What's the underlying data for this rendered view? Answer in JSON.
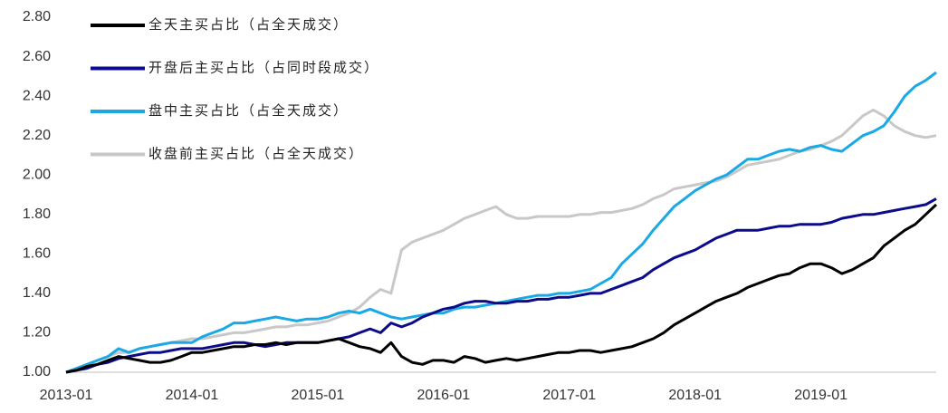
{
  "chart_data": {
    "type": "line",
    "x": [
      "2013-01",
      "2013-02",
      "2013-03",
      "2013-04",
      "2013-05",
      "2013-06",
      "2013-07",
      "2013-08",
      "2013-09",
      "2013-10",
      "2013-11",
      "2013-12",
      "2014-01",
      "2014-02",
      "2014-03",
      "2014-04",
      "2014-05",
      "2014-06",
      "2014-07",
      "2014-08",
      "2014-09",
      "2014-10",
      "2014-11",
      "2014-12",
      "2015-01",
      "2015-02",
      "2015-03",
      "2015-04",
      "2015-05",
      "2015-06",
      "2015-07",
      "2015-08",
      "2015-09",
      "2015-10",
      "2015-11",
      "2015-12",
      "2016-01",
      "2016-02",
      "2016-03",
      "2016-04",
      "2016-05",
      "2016-06",
      "2016-07",
      "2016-08",
      "2016-09",
      "2016-10",
      "2016-11",
      "2016-12",
      "2017-01",
      "2017-02",
      "2017-03",
      "2017-04",
      "2017-05",
      "2017-06",
      "2017-07",
      "2017-08",
      "2017-09",
      "2017-10",
      "2017-11",
      "2017-12",
      "2018-01",
      "2018-02",
      "2018-03",
      "2018-04",
      "2018-05",
      "2018-06",
      "2018-07",
      "2018-08",
      "2018-09",
      "2018-10",
      "2018-11",
      "2018-12",
      "2019-01",
      "2019-02",
      "2019-03",
      "2019-04",
      "2019-05",
      "2019-06",
      "2019-07",
      "2019-08",
      "2019-09",
      "2019-10",
      "2019-11",
      "2019-12"
    ],
    "series": [
      {
        "name": "全天主买占比（占全天成交）",
        "color": "#000000",
        "values": [
          1.0,
          1.01,
          1.03,
          1.04,
          1.06,
          1.08,
          1.07,
          1.06,
          1.05,
          1.05,
          1.06,
          1.08,
          1.1,
          1.1,
          1.11,
          1.12,
          1.13,
          1.13,
          1.14,
          1.14,
          1.15,
          1.14,
          1.15,
          1.15,
          1.15,
          1.16,
          1.17,
          1.15,
          1.13,
          1.12,
          1.1,
          1.15,
          1.08,
          1.05,
          1.04,
          1.06,
          1.06,
          1.05,
          1.08,
          1.07,
          1.05,
          1.06,
          1.07,
          1.06,
          1.07,
          1.08,
          1.09,
          1.1,
          1.1,
          1.11,
          1.11,
          1.1,
          1.11,
          1.12,
          1.13,
          1.15,
          1.17,
          1.2,
          1.24,
          1.27,
          1.3,
          1.33,
          1.36,
          1.38,
          1.4,
          1.43,
          1.45,
          1.47,
          1.49,
          1.5,
          1.53,
          1.55,
          1.55,
          1.53,
          1.5,
          1.52,
          1.55,
          1.58,
          1.64,
          1.68,
          1.72,
          1.75,
          1.8,
          1.85
        ]
      },
      {
        "name": "开盘后主买占比（占同时段成交）",
        "color": "#0c0c8a",
        "values": [
          1.0,
          1.01,
          1.02,
          1.04,
          1.05,
          1.07,
          1.08,
          1.09,
          1.1,
          1.1,
          1.11,
          1.12,
          1.12,
          1.12,
          1.13,
          1.14,
          1.15,
          1.15,
          1.14,
          1.13,
          1.14,
          1.15,
          1.15,
          1.15,
          1.15,
          1.16,
          1.17,
          1.18,
          1.2,
          1.22,
          1.2,
          1.25,
          1.23,
          1.25,
          1.28,
          1.3,
          1.32,
          1.33,
          1.35,
          1.36,
          1.36,
          1.35,
          1.35,
          1.36,
          1.36,
          1.37,
          1.37,
          1.38,
          1.38,
          1.39,
          1.4,
          1.4,
          1.42,
          1.44,
          1.46,
          1.48,
          1.52,
          1.55,
          1.58,
          1.6,
          1.62,
          1.65,
          1.68,
          1.7,
          1.72,
          1.72,
          1.72,
          1.73,
          1.74,
          1.74,
          1.75,
          1.75,
          1.75,
          1.76,
          1.78,
          1.79,
          1.8,
          1.8,
          1.81,
          1.82,
          1.83,
          1.84,
          1.85,
          1.88
        ]
      },
      {
        "name": "盘中主买占比（占全天成交）",
        "color": "#1ba9e6",
        "values": [
          1.0,
          1.02,
          1.04,
          1.06,
          1.08,
          1.12,
          1.1,
          1.12,
          1.13,
          1.14,
          1.15,
          1.15,
          1.15,
          1.18,
          1.2,
          1.22,
          1.25,
          1.25,
          1.26,
          1.27,
          1.28,
          1.27,
          1.26,
          1.27,
          1.27,
          1.28,
          1.3,
          1.31,
          1.3,
          1.32,
          1.3,
          1.28,
          1.27,
          1.28,
          1.29,
          1.3,
          1.3,
          1.32,
          1.33,
          1.33,
          1.34,
          1.35,
          1.36,
          1.37,
          1.38,
          1.39,
          1.39,
          1.4,
          1.4,
          1.41,
          1.42,
          1.45,
          1.48,
          1.55,
          1.6,
          1.65,
          1.72,
          1.78,
          1.84,
          1.88,
          1.92,
          1.95,
          1.98,
          2.0,
          2.04,
          2.08,
          2.08,
          2.1,
          2.12,
          2.13,
          2.12,
          2.14,
          2.15,
          2.13,
          2.12,
          2.16,
          2.2,
          2.22,
          2.25,
          2.32,
          2.4,
          2.45,
          2.48,
          2.52
        ]
      },
      {
        "name": "收盘前主买占比（占全天成交）",
        "color": "#c8c8c8",
        "values": [
          1.0,
          1.02,
          1.04,
          1.06,
          1.08,
          1.1,
          1.1,
          1.12,
          1.13,
          1.14,
          1.15,
          1.16,
          1.17,
          1.17,
          1.18,
          1.19,
          1.2,
          1.2,
          1.21,
          1.22,
          1.23,
          1.23,
          1.24,
          1.24,
          1.25,
          1.26,
          1.28,
          1.3,
          1.33,
          1.38,
          1.42,
          1.4,
          1.62,
          1.66,
          1.68,
          1.7,
          1.72,
          1.75,
          1.78,
          1.8,
          1.82,
          1.84,
          1.8,
          1.78,
          1.78,
          1.79,
          1.79,
          1.79,
          1.79,
          1.8,
          1.8,
          1.81,
          1.81,
          1.82,
          1.83,
          1.85,
          1.88,
          1.9,
          1.93,
          1.94,
          1.95,
          1.96,
          1.97,
          1.99,
          2.02,
          2.05,
          2.06,
          2.07,
          2.08,
          2.1,
          2.12,
          2.13,
          2.15,
          2.17,
          2.2,
          2.25,
          2.3,
          2.33,
          2.3,
          2.25,
          2.22,
          2.2,
          2.19,
          2.2
        ]
      }
    ],
    "xticks": [
      "2013-01",
      "2014-01",
      "2015-01",
      "2016-01",
      "2017-01",
      "2018-01",
      "2019-01"
    ],
    "ylim": [
      1.0,
      2.8
    ],
    "yticks": [
      {
        "value": 1.0,
        "label": "1.00"
      },
      {
        "value": 1.2,
        "label": "1.20"
      },
      {
        "value": 1.4,
        "label": "1.40"
      },
      {
        "value": 1.6,
        "label": "1.60"
      },
      {
        "value": 1.8,
        "label": "1.80"
      },
      {
        "value": 2.0,
        "label": "2.00"
      },
      {
        "value": 2.2,
        "label": "2.20"
      },
      {
        "value": 2.4,
        "label": "2.40"
      },
      {
        "value": 2.6,
        "label": "2.60"
      },
      {
        "value": 2.8,
        "label": "2.80"
      }
    ],
    "grid": false
  }
}
